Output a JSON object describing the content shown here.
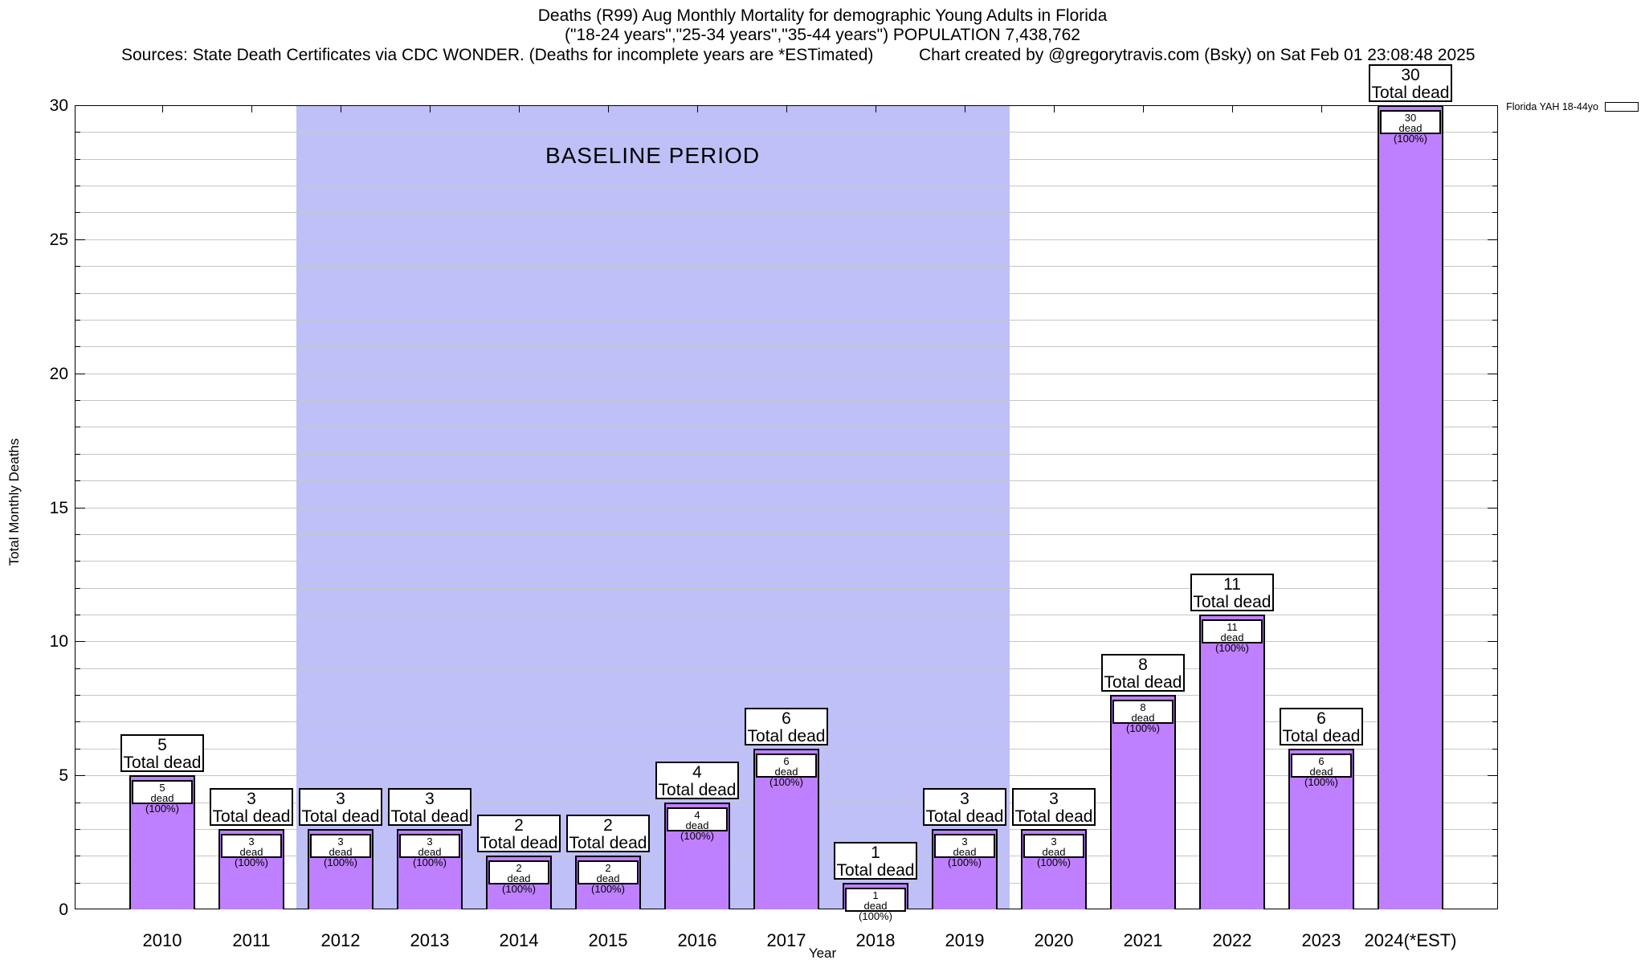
{
  "header": {
    "title_line1": "Deaths (R99) Aug Monthly Mortality for demographic Young Adults in Florida",
    "title_line2": "(\"18-24 years\",\"25-34 years\",\"35-44 years\") POPULATION 7,438,762",
    "sources": "Sources: State Death Certificates via CDC WONDER. (Deaths for incomplete years are *ESTimated)",
    "credit": "Chart created by @gregorytravis.com (Bsky) on Sat Feb 01 23:08:48 2025"
  },
  "legend": {
    "label": "Florida YAH 18-44yo",
    "position": "top-right"
  },
  "axes": {
    "x_title": "Year",
    "y_title": "Total Monthly Deaths",
    "y_major_ticks": [
      0,
      5,
      10,
      15,
      20,
      25,
      30
    ],
    "y_minor_step": 1
  },
  "annotations": {
    "baseline_label": "BASELINE PERIOD",
    "baseline_start_category": "2012",
    "baseline_end_category": "2019"
  },
  "colors": {
    "bar_fill": "#bf80ff",
    "baseline_band": "#c0c0f8",
    "gridline": "#c6c6c6",
    "box_background": "#ffffff",
    "axis": "#000000"
  },
  "bar_label_text": {
    "total_suffix": "Total dead",
    "inner_suffix": "dead (100%)"
  },
  "chart_data": {
    "type": "bar",
    "title": "Deaths (R99) Aug Monthly Mortality for demographic Young Adults in Florida",
    "subtitle": "(\"18-24 years\",\"25-34 years\",\"35-44 years\") POPULATION 7,438,762",
    "xlabel": "Year",
    "ylabel": "Total Monthly Deaths",
    "ylim": [
      0,
      30
    ],
    "grid": "horizontal, every 1 unit",
    "legend_position": "top-right outside plot",
    "categories": [
      "2010",
      "2011",
      "2012",
      "2013",
      "2014",
      "2015",
      "2016",
      "2017",
      "2018",
      "2019",
      "2020",
      "2021",
      "2022",
      "2023",
      "2024(*EST)"
    ],
    "series": [
      {
        "name": "Florida YAH 18-44yo",
        "values": [
          5,
          3,
          3,
          3,
          2,
          2,
          4,
          6,
          1,
          3,
          3,
          8,
          11,
          6,
          30
        ]
      }
    ],
    "annotations": {
      "baseline_period_categories": [
        "2012",
        "2013",
        "2014",
        "2015",
        "2016",
        "2017",
        "2018",
        "2019"
      ],
      "per_bar_labels": [
        {
          "category": "2010",
          "total": "5 Total dead",
          "inner": "5 dead (100%)"
        },
        {
          "category": "2011",
          "total": "3 Total dead",
          "inner": "3 dead (100%)"
        },
        {
          "category": "2012",
          "total": "3 Total dead",
          "inner": "3 dead (100%)"
        },
        {
          "category": "2013",
          "total": "3 Total dead",
          "inner": "3 dead (100%)"
        },
        {
          "category": "2014",
          "total": "2 Total dead",
          "inner": "2 dead (100%)"
        },
        {
          "category": "2015",
          "total": "2 Total dead",
          "inner": "2 dead (100%)"
        },
        {
          "category": "2016",
          "total": "4 Total dead",
          "inner": "4 dead (100%)"
        },
        {
          "category": "2017",
          "total": "6 Total dead",
          "inner": "6 dead (100%)"
        },
        {
          "category": "2018",
          "total": "1 Total dead",
          "inner": "1 dead (100%)"
        },
        {
          "category": "2019",
          "total": "3 Total dead",
          "inner": "3 dead (100%)"
        },
        {
          "category": "2020",
          "total": "3 Total dead",
          "inner": "3 dead (100%)"
        },
        {
          "category": "2021",
          "total": "8 Total dead",
          "inner": "8 dead (100%)"
        },
        {
          "category": "2022",
          "total": "11 Total dead",
          "inner": "11 dead (100%)"
        },
        {
          "category": "2023",
          "total": "6 Total dead",
          "inner": "6 dead (100%)"
        },
        {
          "category": "2024(*EST)",
          "total": "30 Total dead",
          "inner": "30 dead (100%)"
        }
      ]
    }
  }
}
